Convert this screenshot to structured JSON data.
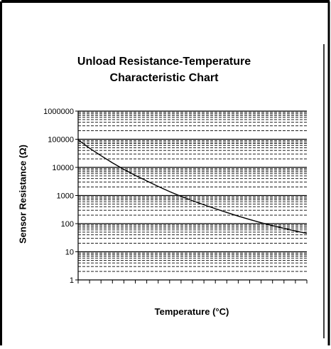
{
  "chart_data": {
    "type": "line",
    "title_lines": [
      "Unload Resistance-Temperature",
      "Characteristic Chart"
    ],
    "xlabel": "Temperature (°C)",
    "ylabel": "Sensor Resistance (Ω)",
    "y_scale": "log",
    "ylim": [
      1,
      1000000
    ],
    "y_tick_labels": [
      "1000000",
      "100000",
      "10000",
      "1000",
      "100",
      "10",
      "1"
    ],
    "x_tick_count": 21,
    "x_tick_labels": [],
    "grid": true,
    "series": [
      {
        "x_fraction": [
          0,
          0.05,
          0.1,
          0.15,
          0.2,
          0.25,
          0.3,
          0.35,
          0.4,
          0.45,
          0.5,
          0.55,
          0.6,
          0.65,
          0.7,
          0.75,
          0.8,
          0.85,
          0.9,
          0.95,
          1.0
        ],
        "values": [
          95000,
          48000,
          26000,
          14500,
          8500,
          5200,
          3300,
          2100,
          1380,
          930,
          650,
          470,
          340,
          250,
          185,
          140,
          108,
          85,
          68,
          55,
          45
        ]
      }
    ]
  }
}
